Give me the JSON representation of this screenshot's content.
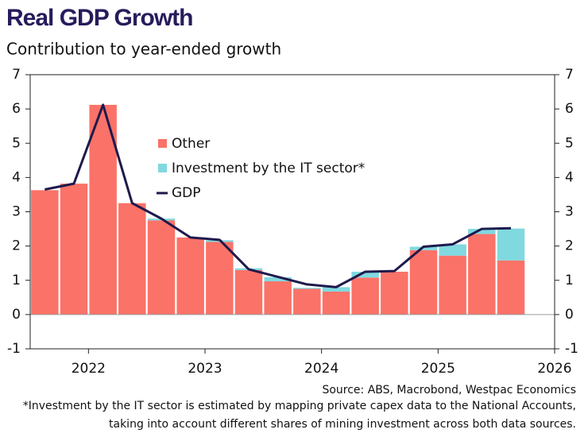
{
  "chart_data": {
    "type": "bar",
    "stacked": true,
    "title": "Real GDP Growth",
    "subtitle": "Contribution to year-ended growth",
    "categories": [
      null,
      null,
      null,
      null,
      null,
      null,
      null,
      null,
      null,
      null,
      null,
      null,
      null,
      null,
      null,
      null,
      null
    ],
    "xtick_labels": [
      "2022",
      "2023",
      "2024",
      "2025",
      "2026"
    ],
    "series": [
      {
        "name": "Other",
        "type": "bar",
        "color": "#fb7268",
        "values": [
          3.63,
          3.82,
          6.12,
          3.25,
          2.75,
          2.25,
          2.12,
          1.3,
          0.97,
          0.75,
          0.67,
          1.08,
          1.25,
          1.88,
          1.72,
          2.35,
          1.58
        ]
      },
      {
        "name": "Investment by the IT sector*",
        "type": "bar",
        "color": "#80d9df",
        "values": [
          0,
          0,
          0,
          0,
          0.05,
          0,
          0.05,
          0.05,
          0.12,
          0.03,
          0.13,
          0.17,
          0,
          0.1,
          0.33,
          0.15,
          0.93
        ]
      },
      {
        "name": "GDP",
        "type": "line",
        "color": "#1e1a4d",
        "values": [
          3.65,
          3.82,
          6.12,
          3.25,
          2.8,
          2.25,
          2.18,
          1.32,
          1.1,
          0.88,
          0.8,
          1.25,
          1.27,
          1.98,
          2.05,
          2.5,
          2.52
        ]
      }
    ],
    "ylim": [
      -1,
      7
    ],
    "yticks": [
      -1,
      0,
      1,
      2,
      3,
      4,
      5,
      6,
      7
    ],
    "y2lim": [
      -1,
      7
    ],
    "y2ticks": [
      -1,
      0,
      1,
      2,
      3,
      4,
      5,
      6,
      7
    ],
    "source": "Source: ABS, Macrobond, Westpac Economics",
    "footnote": [
      "*Investment by the IT sector is estimated by mapping private capex data to the National Accounts,",
      "taking into account different shares of mining investment across both data sources."
    ]
  }
}
